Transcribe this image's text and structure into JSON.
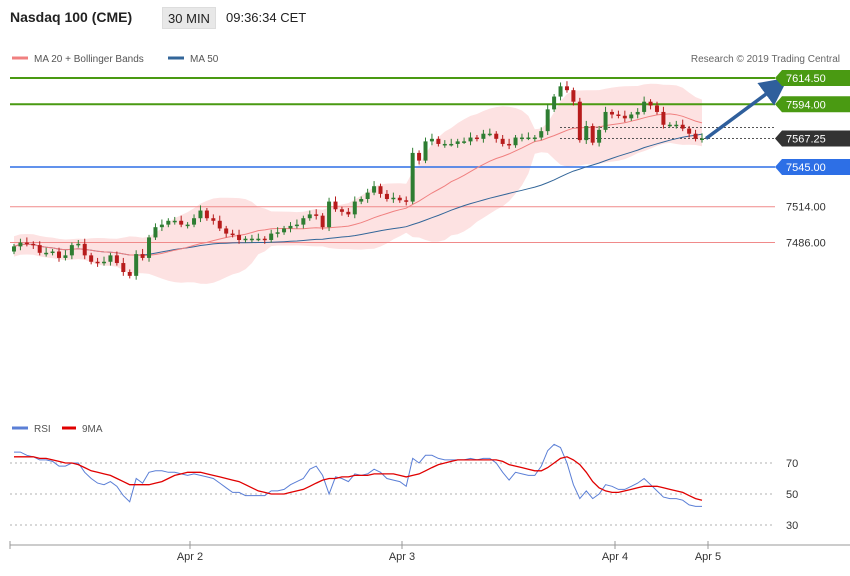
{
  "header": {
    "title": "Nasdaq 100 (CME)",
    "timeframe": "30 MIN",
    "time": "09:36:34 CET"
  },
  "legend": {
    "ma20_bb_label": "MA 20 + Bollinger Bands",
    "ma50_label": "MA 50",
    "copyright": "Research © 2019 Trading Central",
    "ma20_color": "#f08080",
    "ma50_color": "#336699"
  },
  "rsi_legend": {
    "rsi_label": "RSI",
    "ma9_label": "9MA",
    "rsi_color": "#5b7fd6",
    "ma9_color": "#e00000"
  },
  "colors": {
    "up": "#2e7d32",
    "down": "#b71c1c",
    "green_level": "#4a9a12",
    "blue_level": "#2d6fe6",
    "red_level": "#f08a8a",
    "arrow": "#2f5f9c",
    "current": "#333333"
  },
  "chart_data": [
    {
      "type": "candlestick",
      "title": "Nasdaq 100 (CME)",
      "x_ticks": [
        "Apr 2",
        "Apr 3",
        "Apr 4",
        "Apr 5"
      ],
      "ylim": [
        7390,
        7630
      ],
      "levels": [
        {
          "label": "7614.50",
          "value": 7614.5,
          "kind": "resistance"
        },
        {
          "label": "7594.00",
          "value": 7594.0,
          "kind": "resistance"
        },
        {
          "label": "7567.25",
          "value": 7567.25,
          "kind": "current"
        },
        {
          "label": "7545.00",
          "value": 7545.0,
          "kind": "pivot"
        },
        {
          "label": "7514.00",
          "value": 7514.0,
          "kind": "support"
        },
        {
          "label": "7486.00",
          "value": 7486.0,
          "kind": "support"
        }
      ],
      "closes": [
        7483,
        7486,
        7485,
        7484,
        7478,
        7478,
        7479,
        7474,
        7476,
        7484,
        7485,
        7476,
        7471,
        7470,
        7471,
        7476,
        7470,
        7463,
        7460,
        7477,
        7474,
        7490,
        7498,
        7500,
        7503,
        7503,
        7500,
        7500,
        7505,
        7511,
        7505,
        7503,
        7497,
        7493,
        7492,
        7488,
        7489,
        7489,
        7489,
        7488,
        7493,
        7494,
        7497,
        7499,
        7500,
        7505,
        7508,
        7507,
        7498,
        7518,
        7512,
        7510,
        7508,
        7518,
        7520,
        7525,
        7530,
        7524,
        7520,
        7521,
        7519,
        7518,
        7556,
        7550,
        7565,
        7567,
        7563,
        7563,
        7563,
        7565,
        7565,
        7568,
        7567,
        7571,
        7571,
        7567,
        7563,
        7562,
        7568,
        7568,
        7568,
        7568,
        7573,
        7590,
        7600,
        7608,
        7605,
        7596,
        7566,
        7577,
        7564,
        7574,
        7588,
        7586,
        7585,
        7583,
        7586,
        7588,
        7596,
        7593,
        7588,
        7578,
        7578,
        7578,
        7575,
        7571,
        7567,
        7567.25
      ]
    },
    {
      "type": "line",
      "title": "RSI",
      "series": [
        {
          "name": "RSI"
        },
        {
          "name": "9MA"
        }
      ],
      "yticks": [
        30,
        50,
        70
      ],
      "ylim": [
        20,
        88
      ],
      "rsi": [
        77,
        77,
        75,
        74,
        72,
        72,
        71,
        68,
        68,
        70,
        70,
        64,
        60,
        57,
        56,
        58,
        55,
        49,
        45,
        60,
        57,
        64,
        65,
        65,
        64,
        64,
        63,
        62,
        63,
        62,
        61,
        60,
        57,
        54,
        51,
        51,
        49,
        49,
        49,
        49,
        52,
        52,
        53,
        56,
        58,
        60,
        66,
        68,
        62,
        50,
        61,
        60,
        58,
        63,
        62,
        63,
        66,
        64,
        60,
        59,
        58,
        55,
        73,
        70,
        75,
        75,
        73,
        72,
        72,
        72,
        72,
        73,
        72,
        73,
        73,
        70,
        64,
        59,
        64,
        63,
        62,
        62,
        68,
        78,
        82,
        80,
        70,
        56,
        47,
        52,
        47,
        50,
        56,
        55,
        53,
        53,
        55,
        57,
        60,
        56,
        52,
        48,
        47,
        47,
        46,
        43,
        42,
        42
      ],
      "ma9": [
        74,
        74,
        74,
        74,
        73,
        73,
        72,
        71,
        70,
        70,
        69,
        67,
        65,
        64,
        63,
        62,
        60,
        58,
        56,
        56,
        56,
        56,
        57,
        58,
        60,
        62,
        63,
        64,
        64,
        64,
        63,
        62,
        61,
        60,
        59,
        58,
        56,
        54,
        52,
        51,
        50,
        50,
        50,
        51,
        52,
        53,
        55,
        57,
        59,
        60,
        60,
        61,
        61,
        62,
        62,
        62,
        63,
        63,
        63,
        63,
        62,
        61,
        62,
        63,
        65,
        67,
        69,
        70,
        71,
        72,
        72,
        72,
        72,
        72,
        72,
        72,
        71,
        69,
        68,
        67,
        66,
        65,
        65,
        67,
        70,
        73,
        74,
        72,
        69,
        64,
        58,
        54,
        52,
        51,
        51,
        52,
        53,
        54,
        55,
        55,
        55,
        54,
        53,
        52,
        51,
        49,
        47,
        46
      ]
    }
  ]
}
